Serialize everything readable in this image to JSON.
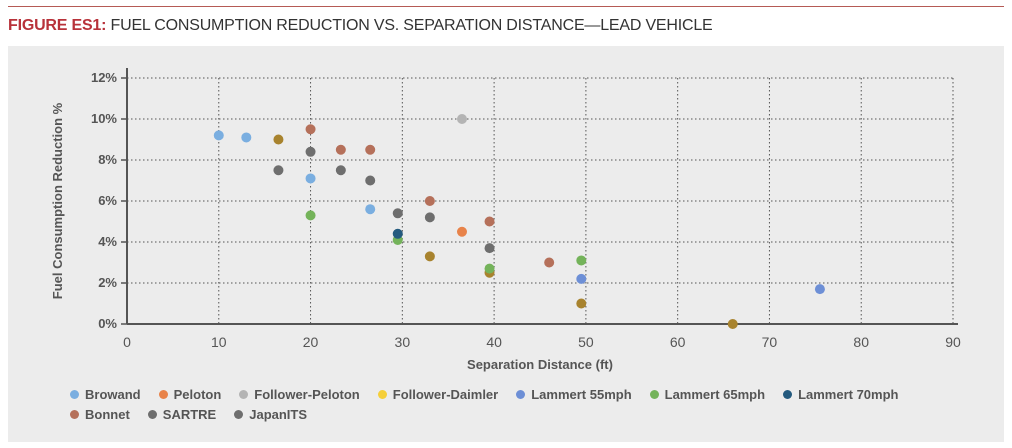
{
  "figure": {
    "label": "FIGURE ES1:",
    "title": " FUEL CONSUMPTION REDUCTION VS. SEPARATION DISTANCE—LEAD VEHICLE"
  },
  "chart_data": {
    "type": "scatter",
    "xlabel": "Separation Distance (ft)",
    "ylabel": "Fuel Consumption Reduction %",
    "xlim": [
      0,
      90
    ],
    "ylim": [
      0,
      12
    ],
    "x_ticks": [
      "0",
      "10",
      "20",
      "30",
      "40",
      "50",
      "60",
      "70",
      "80",
      "90"
    ],
    "y_ticks": [
      "0%",
      "2%",
      "4%",
      "6%",
      "8%",
      "10%",
      "12%"
    ],
    "grid": true,
    "legend_placement": "bottom",
    "series": [
      {
        "name": "Browand",
        "color": "#7aaee0",
        "points": [
          [
            10,
            9.2
          ],
          [
            13,
            9.1
          ],
          [
            20,
            7.1
          ],
          [
            26.5,
            5.6
          ]
        ]
      },
      {
        "name": "Peloton",
        "color": "#e8834a",
        "points": [
          [
            36.5,
            4.5
          ]
        ]
      },
      {
        "name": "Follower-Peloton",
        "color": "#b4b4b4",
        "points": [
          [
            36.5,
            10
          ]
        ]
      },
      {
        "name": "Follower-Daimler",
        "color": "#f5cf3a",
        "marker_color": "#a8832e",
        "points": [
          [
            16.5,
            9.0
          ],
          [
            33,
            3.3
          ],
          [
            39.5,
            2.5
          ],
          [
            49.5,
            1.0
          ],
          [
            66,
            0
          ]
        ]
      },
      {
        "name": "Lammert 55mph",
        "color": "#6d8fd6",
        "points": [
          [
            49.5,
            2.2
          ],
          [
            75.5,
            1.7
          ]
        ]
      },
      {
        "name": "Lammert 65mph",
        "color": "#74b35a",
        "points": [
          [
            20,
            5.3
          ],
          [
            29.5,
            4.1
          ],
          [
            39.5,
            2.7
          ],
          [
            49.5,
            3.1
          ]
        ]
      },
      {
        "name": "Lammert 70mph",
        "color": "#245a7e",
        "points": [
          [
            29.5,
            4.4
          ]
        ]
      },
      {
        "name": "Bonnet",
        "color": "#b5705a",
        "points": [
          [
            20,
            9.5
          ],
          [
            23.3,
            8.5
          ],
          [
            26.5,
            8.5
          ],
          [
            33,
            6.0
          ],
          [
            39.5,
            5.0
          ],
          [
            46,
            3.0
          ]
        ]
      },
      {
        "name": "SARTRE",
        "color": "#6e6e6e",
        "points": [
          [
            20,
            8.4
          ],
          [
            29.5,
            5.4
          ],
          [
            33,
            5.2
          ],
          [
            39.5,
            3.7
          ]
        ]
      },
      {
        "name": "JapanITS",
        "color": "#6e6e6e",
        "points": [
          [
            16.5,
            7.5
          ],
          [
            23.3,
            7.5
          ],
          [
            26.5,
            7.0
          ]
        ]
      }
    ]
  }
}
